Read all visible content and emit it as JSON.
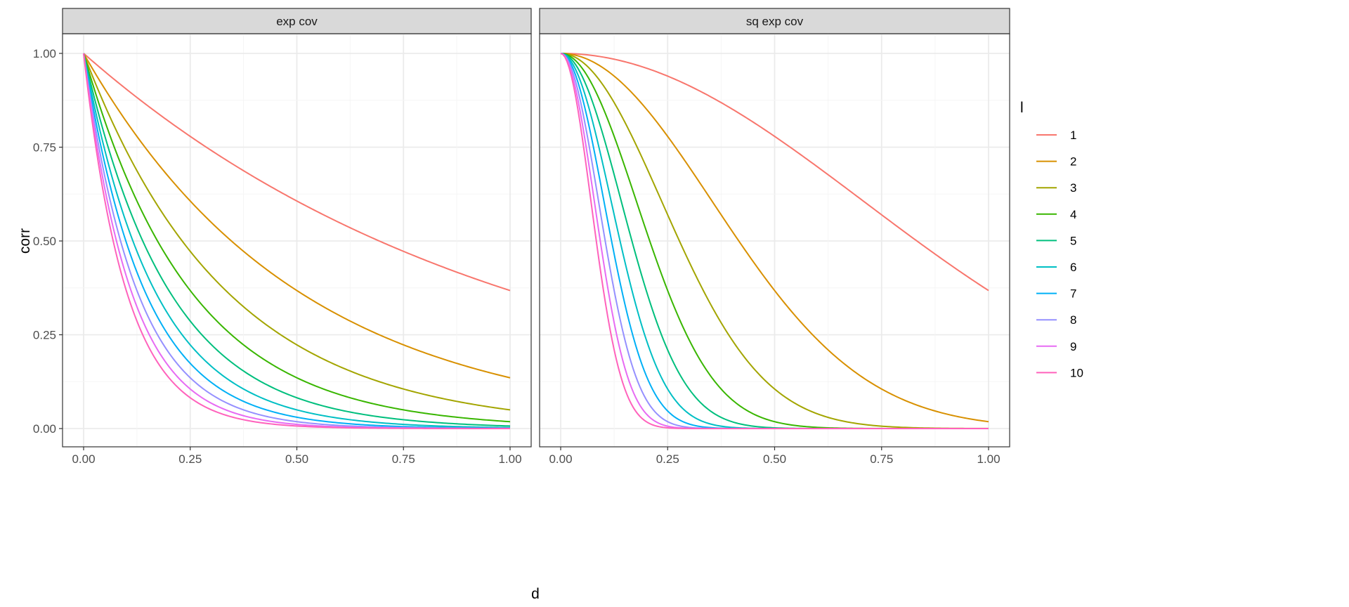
{
  "chart_data": {
    "type": "line",
    "xlabel": "d",
    "ylabel": "corr",
    "xlim": [
      0,
      1
    ],
    "ylim": [
      0,
      1
    ],
    "x_ticks": [
      "0.00",
      "0.25",
      "0.50",
      "0.75",
      "1.00"
    ],
    "y_ticks": [
      "0.00",
      "0.25",
      "0.50",
      "0.75",
      "1.00"
    ],
    "grid": true,
    "legend": {
      "title": "l",
      "placement": "right"
    },
    "x_samples": {
      "from": 0,
      "to": 1,
      "count": 201
    },
    "panels": [
      {
        "strip": "exp cov",
        "formula": "corr = exp(-l*d)",
        "kind": "exp"
      },
      {
        "strip": "sq exp cov",
        "formula": "corr = exp(-(l*d)^2)",
        "kind": "sqexp"
      }
    ],
    "series": [
      {
        "name": "1",
        "l": 1,
        "color": "#F8766D"
      },
      {
        "name": "2",
        "l": 2,
        "color": "#D89000"
      },
      {
        "name": "3",
        "l": 3,
        "color": "#A3A500"
      },
      {
        "name": "4",
        "l": 4,
        "color": "#39B600"
      },
      {
        "name": "5",
        "l": 5,
        "color": "#00BF7D"
      },
      {
        "name": "6",
        "l": 6,
        "color": "#00BFC4"
      },
      {
        "name": "7",
        "l": 7,
        "color": "#00B0F6"
      },
      {
        "name": "8",
        "l": 8,
        "color": "#9590FF"
      },
      {
        "name": "9",
        "l": 9,
        "color": "#E76BF3"
      },
      {
        "name": "10",
        "l": 10,
        "color": "#FF62BC"
      }
    ]
  }
}
